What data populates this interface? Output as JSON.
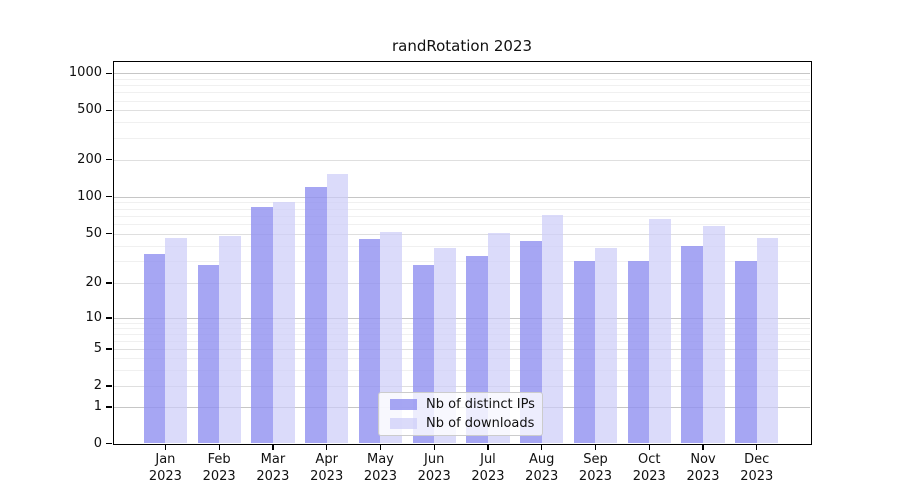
{
  "chart_data": {
    "type": "bar",
    "title": "randRotation 2023",
    "categories": [
      "Jan 2023",
      "Feb 2023",
      "Mar 2023",
      "Apr 2023",
      "May 2023",
      "Jun 2023",
      "Jul 2023",
      "Aug 2023",
      "Sep 2023",
      "Oct 2023",
      "Nov 2023",
      "Dec 2023"
    ],
    "series": [
      {
        "name": "Nb of distinct IPs",
        "color": "rgba(144,144,240,0.8)",
        "values": [
          34,
          28,
          82,
          120,
          45,
          28,
          33,
          44,
          30,
          30,
          40,
          30
        ]
      },
      {
        "name": "Nb of downloads",
        "color": "rgba(204,204,248,0.7)",
        "values": [
          46,
          48,
          91,
          152,
          52,
          38,
          51,
          71,
          38,
          66,
          58,
          46
        ]
      }
    ],
    "yscale": "symlog",
    "ytick_labels": [
      "0",
      "1",
      "2",
      "5",
      "10",
      "20",
      "50",
      "100",
      "200",
      "500",
      "1000"
    ],
    "ytick_values": [
      0,
      1,
      2,
      5,
      10,
      20,
      50,
      100,
      200,
      500,
      1000
    ],
    "ylim": [
      0,
      1260
    ],
    "grid": true,
    "legend_position": "lower center",
    "colors": {
      "grid_major": "#c6c6c6",
      "grid_labeled": "#dfdfdf",
      "grid_minor": "#f0f0f0",
      "spine": "#000000"
    }
  }
}
